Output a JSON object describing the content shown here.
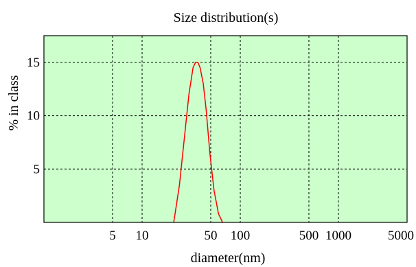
{
  "chart_data": {
    "type": "line",
    "title": "Size distribution(s)",
    "xlabel": "diameter(nm)",
    "ylabel": "% in class",
    "x_scale": "log",
    "xlim": [
      1,
      5000
    ],
    "ylim": [
      0,
      17.5
    ],
    "x_ticks": [
      5,
      10,
      50,
      100,
      500,
      1000,
      5000
    ],
    "x_tick_labels": [
      "5",
      "10",
      "50",
      "100",
      "500",
      "1000",
      "5000"
    ],
    "x_grid_lines": [
      5,
      10,
      50,
      100,
      500,
      1000
    ],
    "y_ticks": [
      5,
      10,
      15
    ],
    "y_tick_labels": [
      "5",
      "10",
      "15"
    ],
    "grid": true,
    "grid_style": "dashed",
    "colors": {
      "plot_background": "#CCFFCC",
      "series": "#FF0000",
      "grid": "#000000"
    },
    "series": [
      {
        "x": [
          21,
          24,
          27,
          30,
          33,
          35,
          37,
          39,
          42,
          45,
          49,
          54,
          60,
          66
        ],
        "y": [
          0,
          3.5,
          8,
          12,
          14.5,
          15,
          15,
          14.5,
          13,
          10.5,
          6.5,
          3,
          0.8,
          0
        ]
      }
    ]
  }
}
